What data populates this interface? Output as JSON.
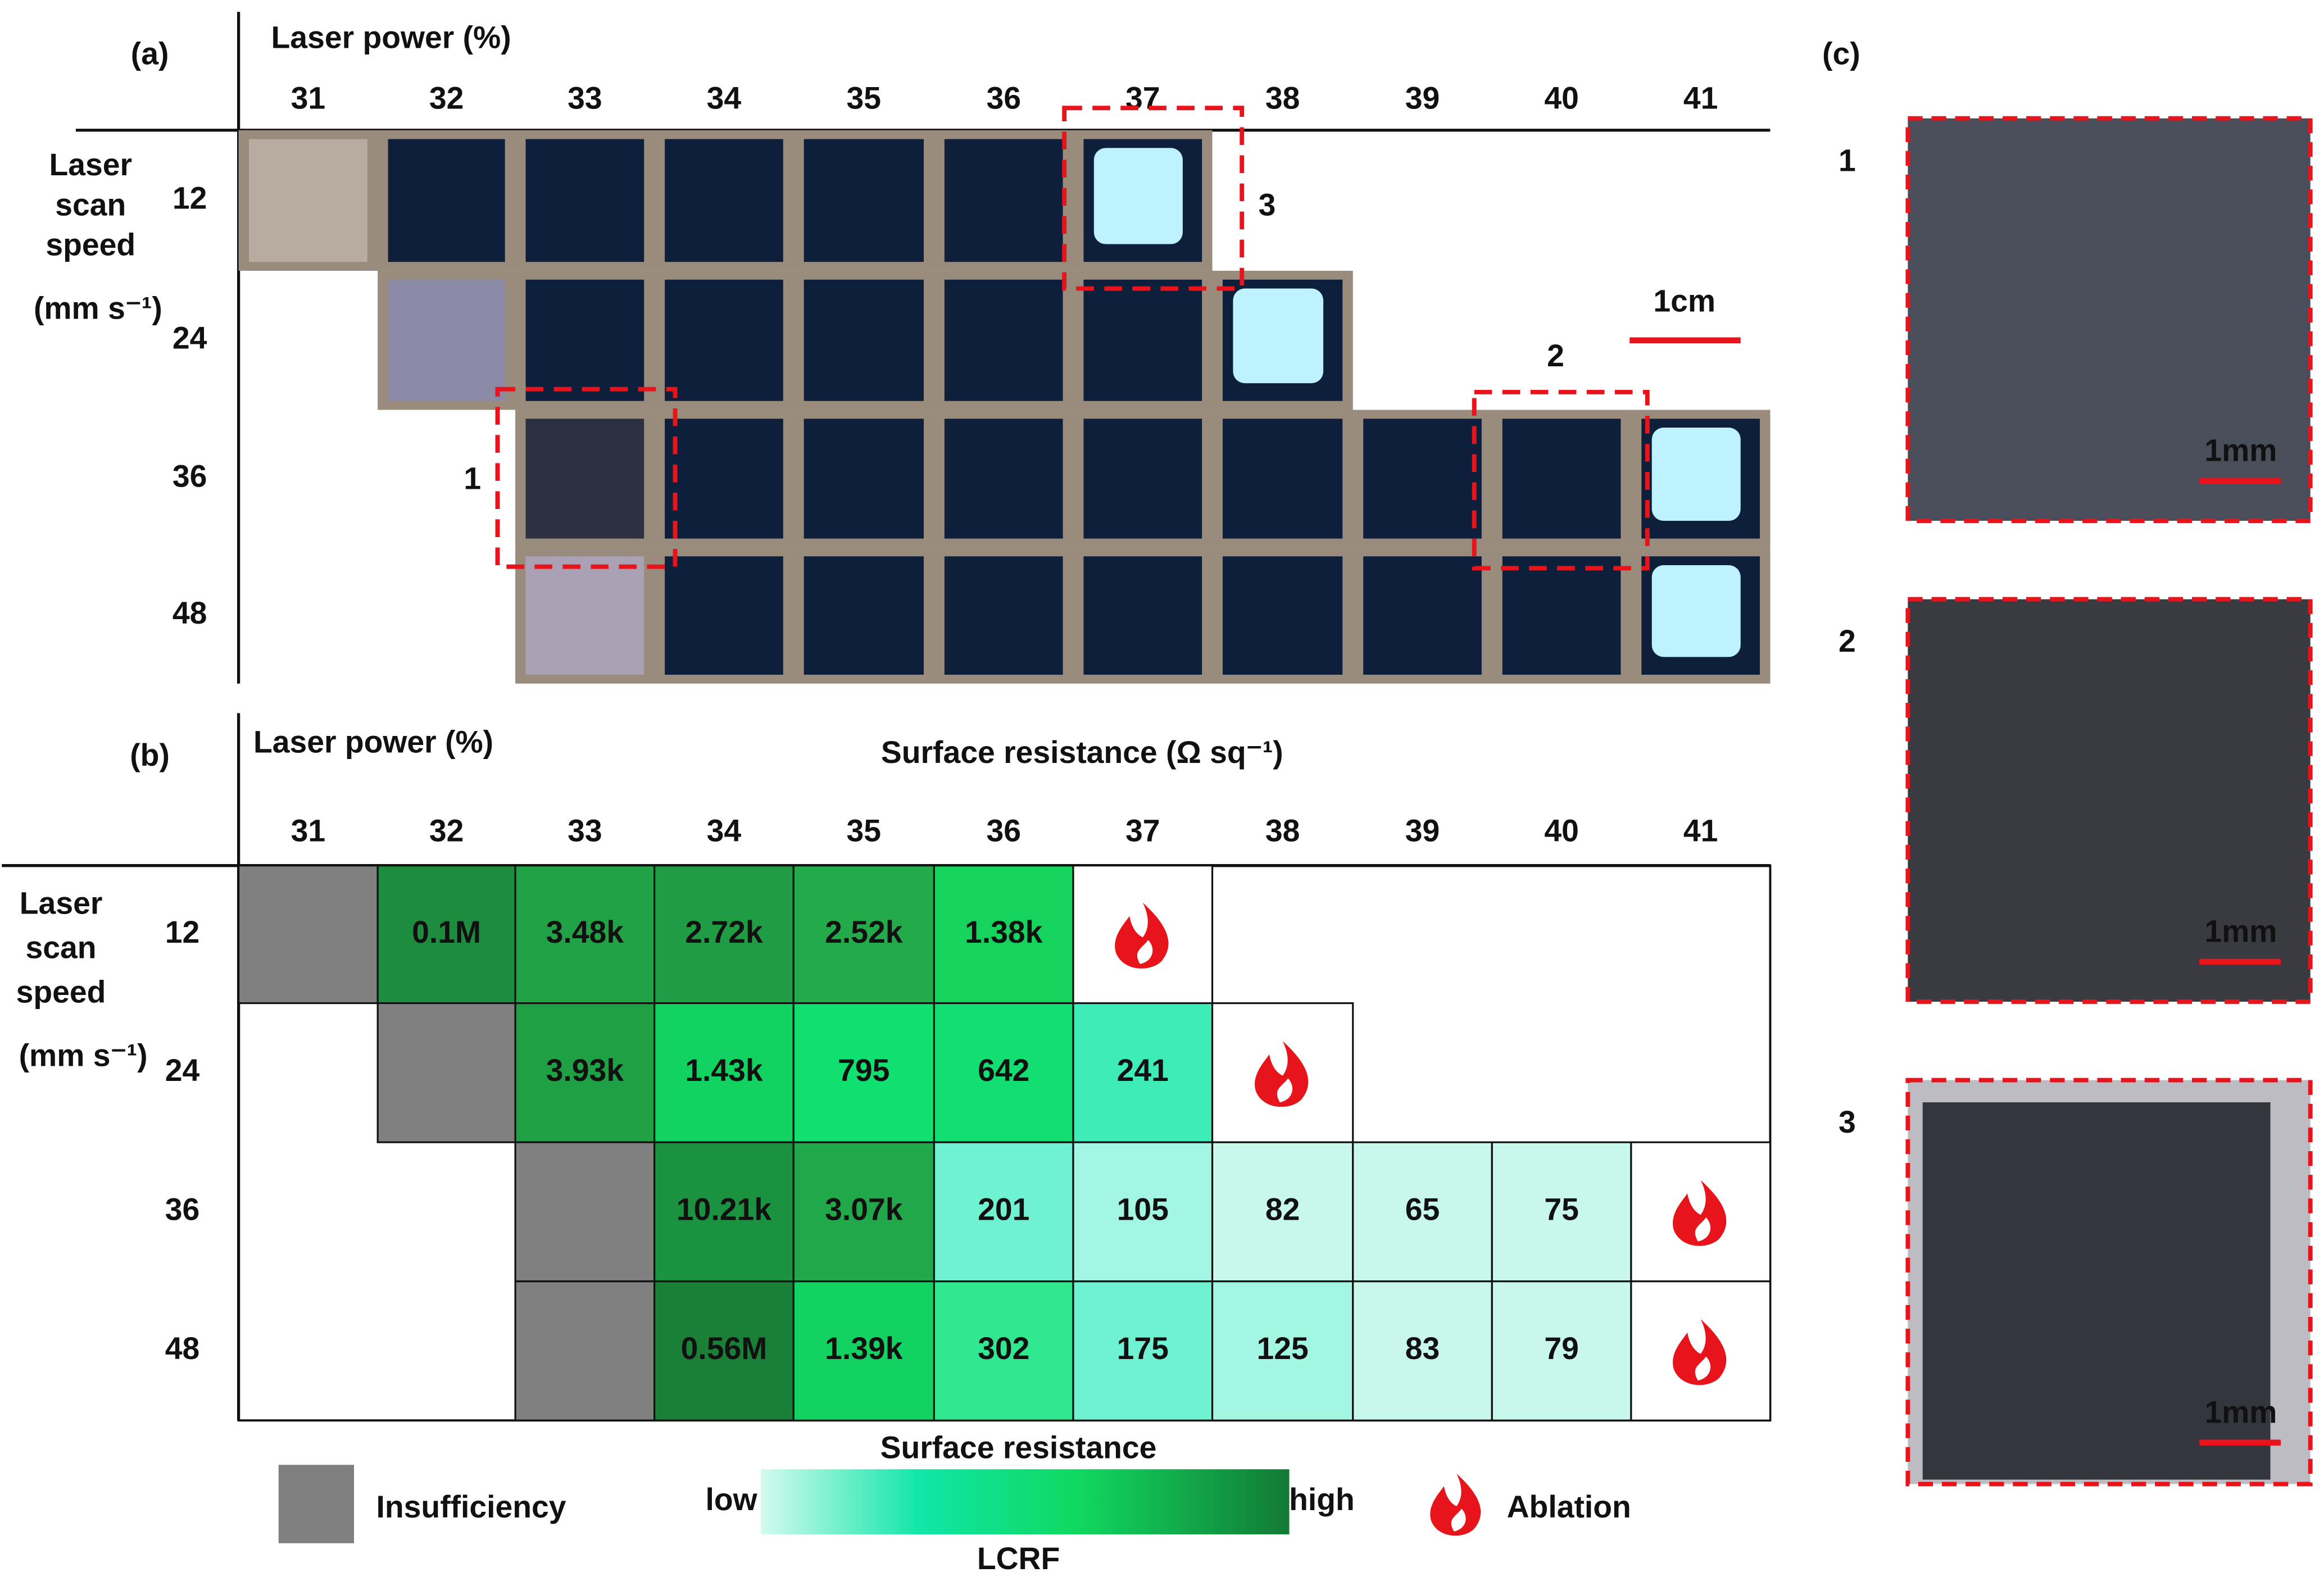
{
  "panel_a": {
    "label": "(a)",
    "x_title": "Laser power (%)",
    "powers": [
      "31",
      "32",
      "33",
      "34",
      "35",
      "36",
      "37",
      "38",
      "39",
      "40",
      "41"
    ],
    "y_title": [
      "Laser",
      "scan",
      "speed",
      "(mm s⁻¹)"
    ],
    "speeds": [
      "12",
      "24",
      "36",
      "48"
    ],
    "scale_bar": "1cm",
    "boxes": [
      "1",
      "2",
      "3"
    ]
  },
  "panel_b": {
    "label": "(b)",
    "title": "Surface resistance (Ω sq⁻¹)",
    "x_title": "Laser power (%)",
    "powers": [
      "31",
      "32",
      "33",
      "34",
      "35",
      "36",
      "37",
      "38",
      "39",
      "40",
      "41"
    ],
    "y_title": [
      "Laser",
      "scan",
      "speed",
      "(mm s⁻¹)"
    ],
    "speeds": [
      "12",
      "24",
      "36",
      "48"
    ],
    "rows": [
      [
        {
          "color": "#808080"
        },
        {
          "text": "0.1M",
          "color": "#1e8c3e"
        },
        {
          "text": "3.48k",
          "color": "#22a247"
        },
        {
          "text": "2.72k",
          "color": "#209c44"
        },
        {
          "text": "2.52k",
          "color": "#22aa4b"
        },
        {
          "text": "1.38k",
          "color": "#14d45e"
        },
        {
          "ablation": true
        },
        null,
        null,
        null,
        null
      ],
      [
        null,
        {
          "color": "#808080"
        },
        {
          "text": "3.93k",
          "color": "#20a045"
        },
        {
          "text": "1.43k",
          "color": "#12d262"
        },
        {
          "text": "795",
          "color": "#10e070"
        },
        {
          "text": "642",
          "color": "#12de72"
        },
        {
          "text": "241",
          "color": "#3eecb8"
        },
        {
          "ablation": true
        },
        null,
        null,
        null
      ],
      [
        null,
        null,
        {
          "color": "#808080"
        },
        {
          "text": "10.21k",
          "color": "#1b9240"
        },
        {
          "text": "3.07k",
          "color": "#20a84a"
        },
        {
          "text": "201",
          "color": "#6ef2d2"
        },
        {
          "text": "105",
          "color": "#a2f6e2"
        },
        {
          "text": "82",
          "color": "#c8f8ec"
        },
        {
          "text": "65",
          "color": "#c8f8ec"
        },
        {
          "text": "75",
          "color": "#c8f8ec"
        },
        {
          "ablation": true
        }
      ],
      [
        null,
        null,
        {
          "color": "#808080"
        },
        {
          "text": "0.56M",
          "color": "#1a8038"
        },
        {
          "text": "1.39k",
          "color": "#12d262"
        },
        {
          "text": "302",
          "color": "#30e890"
        },
        {
          "text": "175",
          "color": "#6ef2d2"
        },
        {
          "text": "125",
          "color": "#a2f6e2"
        },
        {
          "text": "83",
          "color": "#c8f8ec"
        },
        {
          "text": "79",
          "color": "#c8f8ec"
        },
        {
          "ablation": true
        }
      ]
    ],
    "legend": {
      "insufficiency": "Insufficiency",
      "gradient_title": "Surface resistance",
      "low": "low",
      "high": "high",
      "gradient_label": "LCRF",
      "ablation": "Ablation"
    }
  },
  "panel_c": {
    "label": "(c)",
    "images": [
      {
        "label": "1",
        "scale_bar": "1mm"
      },
      {
        "label": "2",
        "scale_bar": "1mm"
      },
      {
        "label": "3",
        "scale_bar": "1mm"
      }
    ]
  }
}
